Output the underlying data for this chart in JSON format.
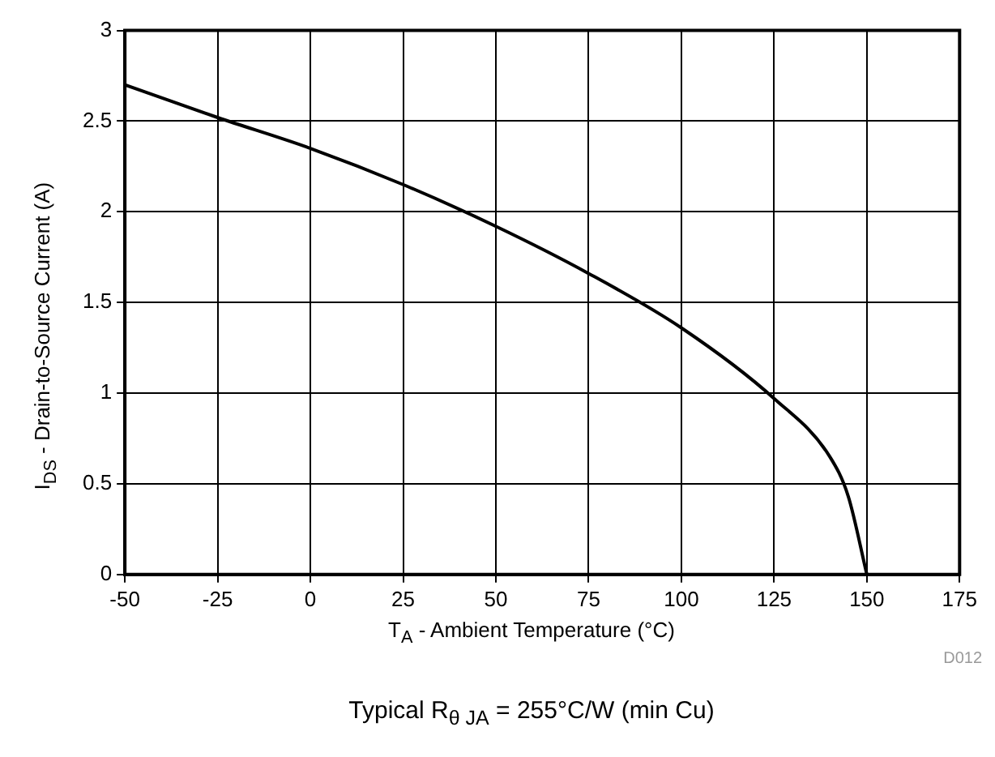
{
  "chart_data": {
    "type": "line",
    "xlabel": "T$_{A}$ - Ambient Temperature (°C)",
    "ylabel": "I$_{DS}$ - Drain-to-Source Current (A)",
    "x": [
      -50,
      -25,
      0,
      25,
      50,
      75,
      100,
      125,
      140,
      145,
      150
    ],
    "series": [
      {
        "color": "#000000",
        "values": [
          2.7,
          2.52,
          2.35,
          2.15,
          1.92,
          1.66,
          1.36,
          0.97,
          0.65,
          0.43,
          0
        ]
      }
    ],
    "xlim": [
      -50,
      175
    ],
    "xticks": [
      -50,
      -25,
      0,
      25,
      50,
      75,
      100,
      125,
      150,
      175
    ],
    "ylim": [
      0,
      3
    ],
    "yticks": [
      0,
      0.5,
      1,
      1.5,
      2,
      2.5,
      3
    ],
    "grid": true,
    "legend": false,
    "marker": "none",
    "line_style": "solid",
    "annotations": [
      "D012",
      "Typical R$_{θ JA}$ = 255°C/W (min Cu)"
    ]
  }
}
